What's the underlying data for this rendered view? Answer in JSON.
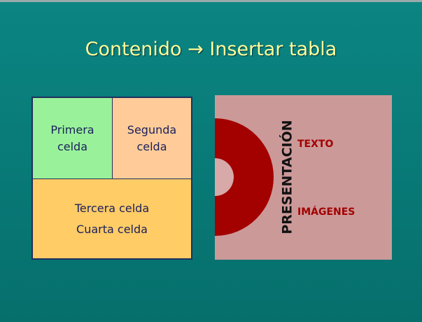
{
  "slide": {
    "title": "Contenido → Insertar tabla",
    "table": {
      "cells": [
        {
          "lines": [
            "Primera",
            "celda"
          ]
        },
        {
          "lines": [
            "Segunda",
            "celda"
          ]
        },
        {
          "lines": [
            "Tercera celda",
            "Cuarta celda"
          ]
        }
      ]
    },
    "image": {
      "vertical_text": "PRESENTACIÓN",
      "labels": [
        "TEXTO",
        "IMÁGENES"
      ]
    }
  }
}
